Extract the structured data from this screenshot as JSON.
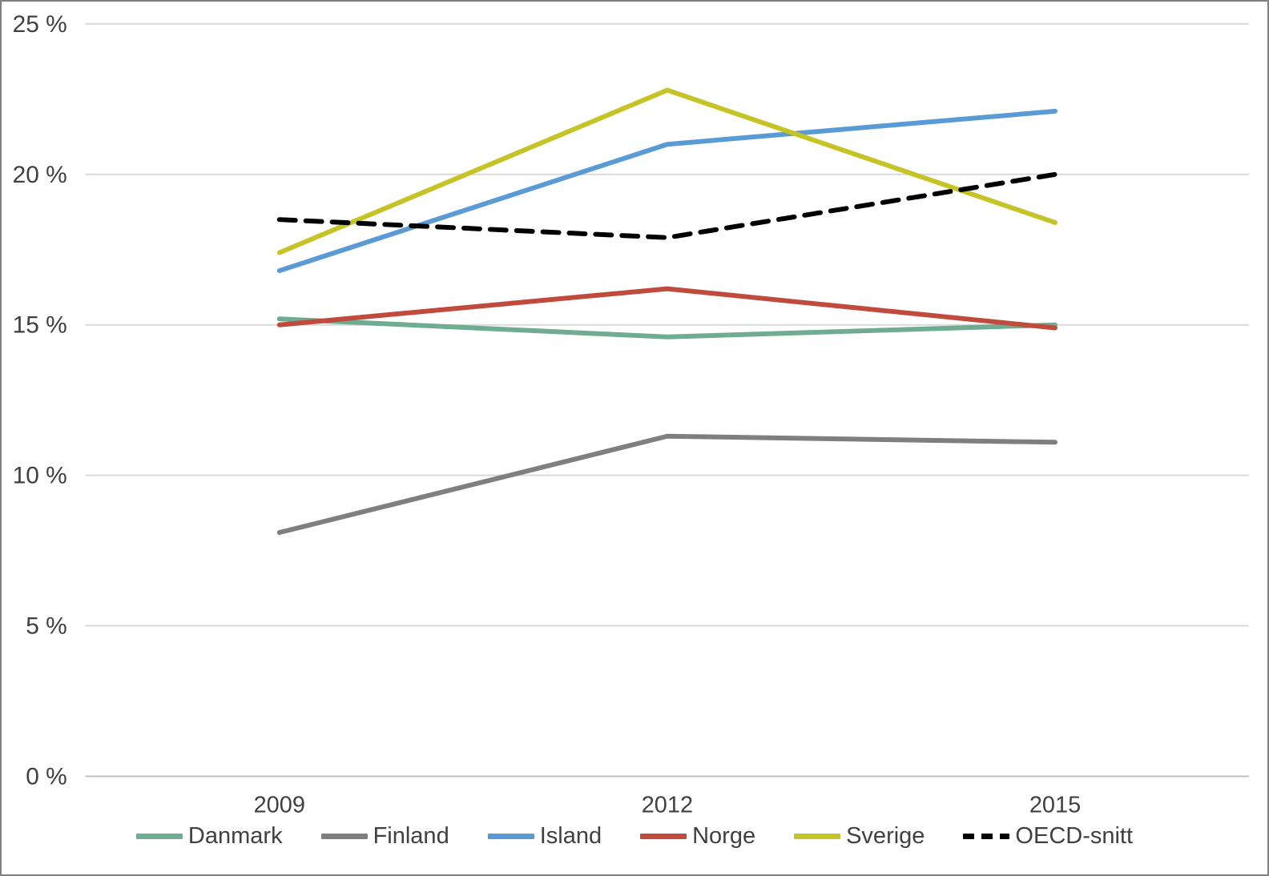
{
  "chart_data": {
    "type": "line",
    "title": "",
    "xlabel": "",
    "ylabel": "",
    "categories": [
      "2009",
      "2012",
      "2015"
    ],
    "series": [
      {
        "name": "Danmark",
        "color": "#6fac91",
        "dashed": false,
        "values": [
          15.2,
          14.6,
          15.0
        ]
      },
      {
        "name": "Finland",
        "color": "#7f7f7f",
        "dashed": false,
        "values": [
          8.1,
          11.3,
          11.1
        ]
      },
      {
        "name": "Island",
        "color": "#5b9bd5",
        "dashed": false,
        "values": [
          16.8,
          21.0,
          22.1
        ]
      },
      {
        "name": "Norge",
        "color": "#c04b3c",
        "dashed": false,
        "values": [
          15.0,
          16.2,
          14.9
        ]
      },
      {
        "name": "Sverige",
        "color": "#c6c326",
        "dashed": false,
        "values": [
          17.4,
          22.8,
          18.4
        ]
      },
      {
        "name": "OECD-snitt",
        "color": "#000000",
        "dashed": true,
        "values": [
          18.5,
          17.9,
          20.0
        ]
      }
    ],
    "ylim": [
      0,
      25
    ],
    "ytick_step": 5,
    "ytick_suffix": " %",
    "grid": true,
    "legend_position": "bottom"
  },
  "style": {
    "background": "#ffffff",
    "gridline_color": "#d9d9d9",
    "axis_line_color": "#bfbfbf",
    "text_color": "#404040",
    "border_color": "#7f7f7f",
    "line_width": 6,
    "dash_pattern": "20 13"
  }
}
